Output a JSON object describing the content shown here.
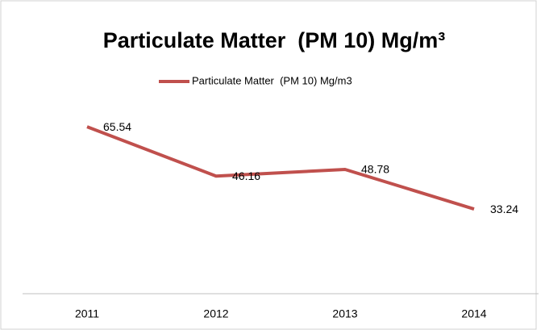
{
  "chart_data": {
    "type": "line",
    "title": "Particulate Matter  (PM 10) Mg/m³",
    "categories": [
      "2011",
      "2012",
      "2013",
      "2014"
    ],
    "series": [
      {
        "name": "Particulate Matter  (PM 10) Mg/m3",
        "color": "#c0504d",
        "values": [
          65.54,
          46.16,
          48.78,
          33.24
        ]
      }
    ],
    "ylim": [
      0,
      70
    ],
    "legend": "top"
  }
}
